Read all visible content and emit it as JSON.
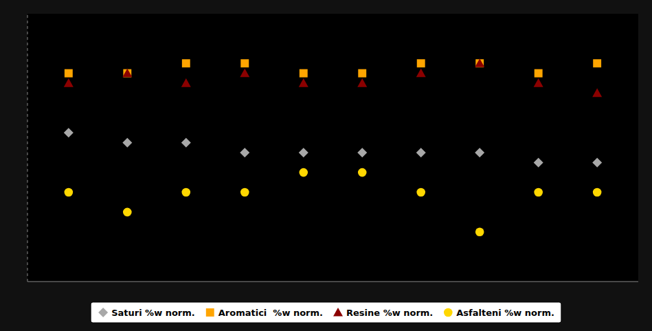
{
  "chart_data": {
    "type": "scatter",
    "x": [
      1,
      2,
      3,
      4,
      5,
      6,
      7,
      8,
      9,
      10
    ],
    "series": [
      {
        "name": "Saturi %w norm.",
        "color": "#a8a8a8",
        "marker": "diamond",
        "values": [
          30,
          29,
          29,
          28,
          28,
          28,
          28,
          28,
          27,
          27
        ]
      },
      {
        "name": "Aromatici  %w norm.",
        "color": "#FFA500",
        "marker": "square",
        "values": [
          36,
          36,
          37,
          37,
          36,
          36,
          37,
          37,
          36,
          37
        ]
      },
      {
        "name": "Resine %w norm.",
        "color": "#8B0000",
        "marker": "triangle",
        "values": [
          35,
          36,
          35,
          36,
          35,
          35,
          36,
          37,
          35,
          34
        ]
      },
      {
        "name": "Asfalteni %w norm.",
        "color": "#FFD700",
        "marker": "circle",
        "values": [
          24,
          22,
          24,
          24,
          26,
          26,
          24,
          20,
          24,
          24
        ]
      }
    ],
    "xlim": [
      0.3,
      10.7
    ],
    "ylim": [
      15,
      42
    ],
    "tick_labels": false,
    "grid": false,
    "legend": "bottom"
  }
}
